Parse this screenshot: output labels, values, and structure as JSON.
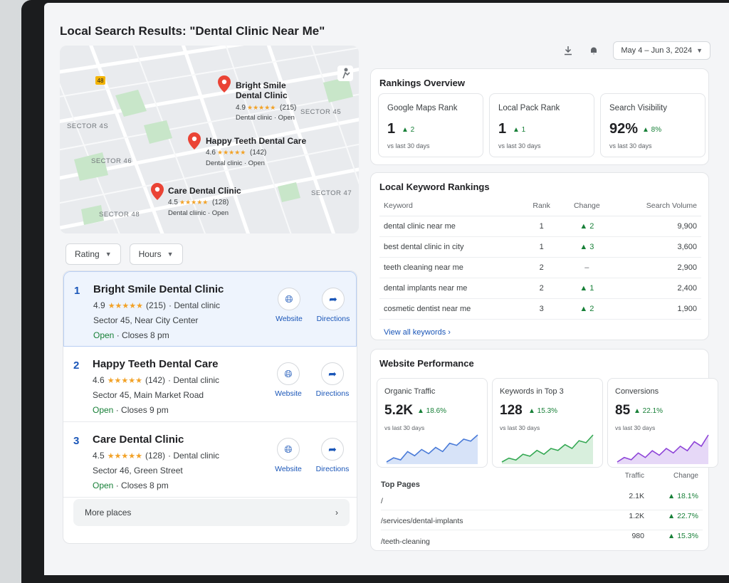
{
  "page": {
    "title": "Local Search Results: \"Dental Clinic Near Me\""
  },
  "header": {
    "download_icon": "download-icon",
    "bell_icon": "bell-icon",
    "date_range": "May 4 – Jun 3, 2024"
  },
  "map": {
    "road_badge": "48",
    "sectors": [
      "SECTOR 45",
      "SECTOR 4S",
      "SECTOR 47",
      "SECTOR 48",
      "SECTOR 46"
    ],
    "pins": [
      {
        "name_line1": "Bright Smile",
        "name_line2": "Dental Clinic",
        "rating": "4.9",
        "stars": "★★★★★",
        "reviews": "(215)",
        "meta": "Dental clinic · Open"
      },
      {
        "name_line1": "Happy Teeth Dental Care",
        "name_line2": "",
        "rating": "4.6",
        "stars": "★★★★★",
        "reviews": "(142)",
        "meta": "Dental clinic · Open"
      },
      {
        "name_line1": "Care Dental Clinic",
        "name_line2": "",
        "rating": "4.5",
        "stars": "★★★★★",
        "reviews": "(128)",
        "meta": "Dental cliinic · Open"
      }
    ]
  },
  "filters": {
    "rating": "Rating",
    "hours": "Hours"
  },
  "results": [
    {
      "num": "1",
      "name": "Bright Smile Dental Clinic",
      "rating": "4.9",
      "stars": "★★★★★",
      "reviews": "(215)",
      "category": "· Dental clinic",
      "address": "Sector 45, Near City Center",
      "open": "Open",
      "closes": "· Closes 8 pm",
      "website": "Website",
      "directions": "Directions"
    },
    {
      "num": "2",
      "name": "Happy Teeth Dental Care",
      "rating": "4.6",
      "stars": "★★★★★",
      "reviews": "(142)",
      "category": "· Dental clinic",
      "address": "Sector 45, Main Market Road",
      "open": "Open",
      "closes": "· Closes 9 pm",
      "website": "Website",
      "directions": "Directions"
    },
    {
      "num": "3",
      "name": "Care Dental Clinic",
      "rating": "4.5",
      "stars": "★★★★★",
      "reviews": "(128)",
      "category": "· Dental clinic",
      "address": "Sector 46, Green Street",
      "open": "Open",
      "closes": "· Closes 8 pm",
      "website": "Website",
      "directions": "Directions"
    }
  ],
  "more_places": "More places",
  "rankings": {
    "title": "Rankings Overview",
    "boxes": [
      {
        "label": "Google Maps Rank",
        "value": "1",
        "delta": "▲ 2",
        "sub": "vs last 30 days"
      },
      {
        "label": "Local Pack Rank",
        "value": "1",
        "delta": "▲ 1",
        "sub": "vs last 30 days"
      },
      {
        "label": "Search Visibility",
        "value": "92%",
        "delta": "▲ 8%",
        "sub": "vs last 30 days"
      }
    ]
  },
  "keywords": {
    "title": "Local Keyword Rankings",
    "headers": {
      "keyword": "Keyword",
      "rank": "Rank",
      "change": "Change",
      "volume": "Search Volume"
    },
    "rows": [
      {
        "keyword": "dental clinic near me",
        "rank": "1",
        "change": "▲ 2",
        "volume": "9,900"
      },
      {
        "keyword": "best dental clinic in city",
        "rank": "1",
        "change": "▲ 3",
        "volume": "3,600"
      },
      {
        "keyword": "teeth cleaning near me",
        "rank": "2",
        "change": "–",
        "volume": "2,900"
      },
      {
        "keyword": "dental implants near me",
        "rank": "2",
        "change": "▲ 1",
        "volume": "2,400"
      },
      {
        "keyword": "cosmetic dentist near me",
        "rank": "3",
        "change": "▲ 2",
        "volume": "1,900"
      }
    ],
    "view_all": "View all keywords"
  },
  "performance": {
    "title": "Website Performance",
    "boxes": [
      {
        "label": "Organic Traffic",
        "value": "5.2K",
        "delta": "▲ 18.6%",
        "sub": "vs last 30 days",
        "color": "#4a7bd8",
        "fill": "#d7e3f8",
        "trend": [
          3,
          5,
          4,
          8,
          6,
          9,
          7,
          10,
          8,
          12,
          11,
          14,
          13,
          16
        ]
      },
      {
        "label": "Keywords in Top 3",
        "value": "128",
        "delta": "▲ 15.3%",
        "sub": "vs last 30 days",
        "color": "#34a853",
        "fill": "#d8efdd",
        "trend": [
          2,
          4,
          3,
          6,
          5,
          8,
          6,
          9,
          8,
          11,
          9,
          13,
          12,
          16
        ]
      },
      {
        "label": "Conversions",
        "value": "85",
        "delta": "▲ 22.1%",
        "sub": "vs last 30 days",
        "color": "#8e44d8",
        "fill": "#e6d8f7",
        "trend": [
          3,
          5,
          4,
          7,
          5,
          8,
          6,
          9,
          7,
          10,
          8,
          12,
          10,
          15
        ]
      }
    ],
    "top_pages": {
      "title": "Top Pages",
      "col_traffic": "Traffic",
      "col_change": "Change",
      "rows": [
        {
          "path": "/",
          "traffic": "2.1K",
          "change": "▲ 18.1%"
        },
        {
          "path": "/services/dental-implants",
          "traffic": "1.2K",
          "change": "▲ 22.7%"
        },
        {
          "path": "/teeth-cleaning",
          "traffic": "980",
          "change": "▲ 15.3%"
        }
      ]
    }
  }
}
